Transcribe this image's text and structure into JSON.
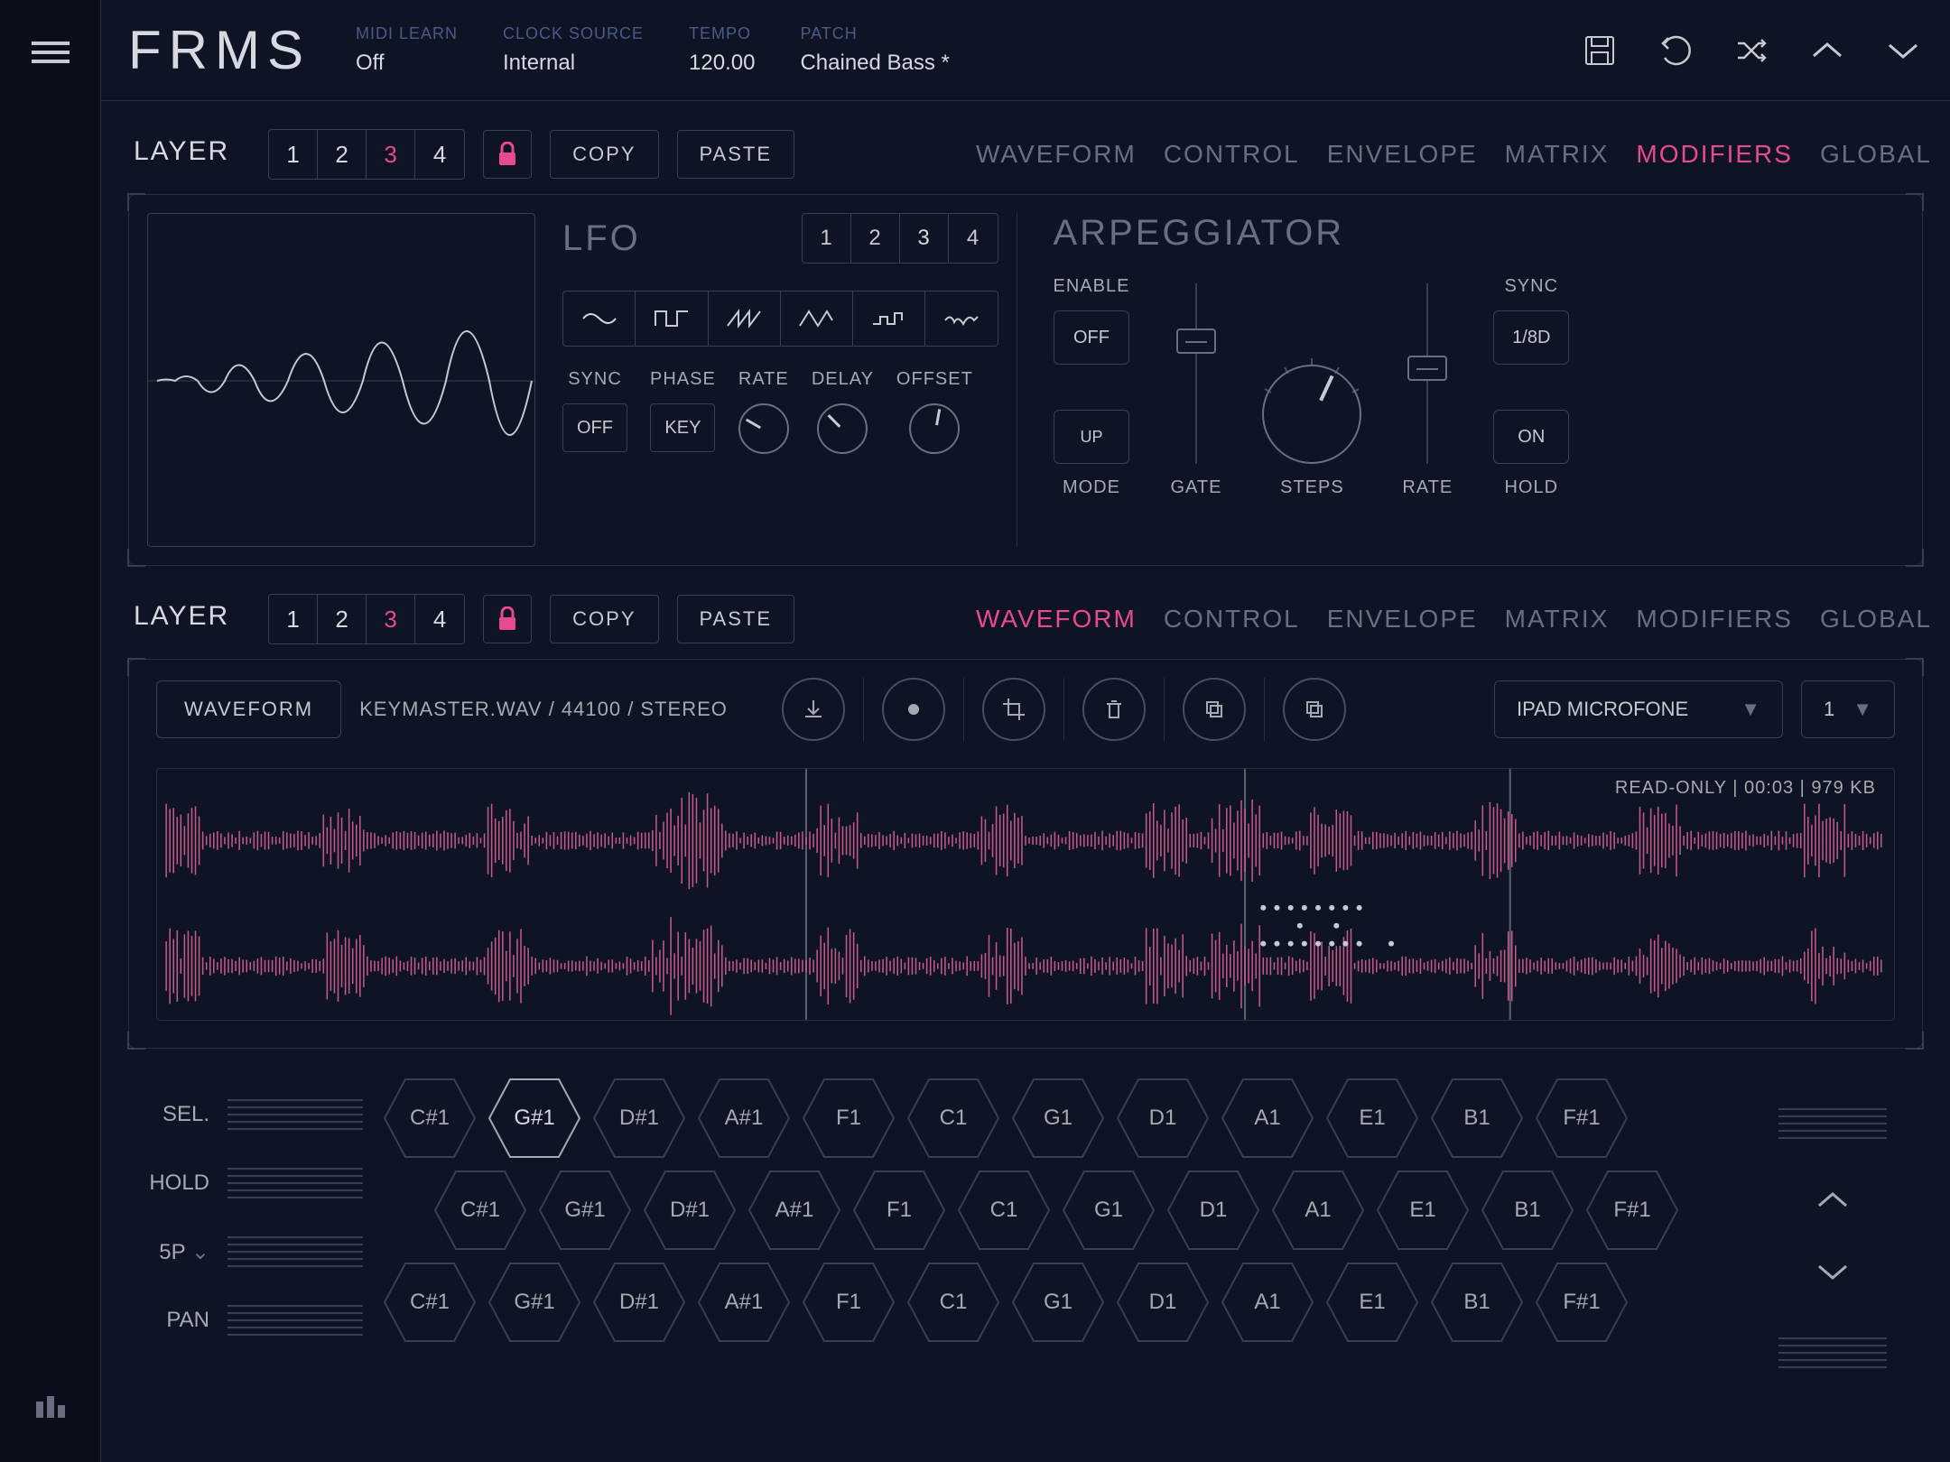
{
  "header": {
    "logo": "FRMS",
    "params": {
      "midi_learn": {
        "label": "MIDI LEARN",
        "value": "Off"
      },
      "clock_source": {
        "label": "CLOCK SOURCE",
        "value": "Internal"
      },
      "tempo": {
        "label": "TEMPO",
        "value": "120.00"
      },
      "patch": {
        "label": "PATCH",
        "value": "Chained Bass *"
      }
    }
  },
  "layer1": {
    "label": "LAYER",
    "tabs": [
      "1",
      "2",
      "3",
      "4"
    ],
    "active_tab": 2,
    "copy": "COPY",
    "paste": "PASTE",
    "nav": [
      "WAVEFORM",
      "CONTROL",
      "ENVELOPE",
      "MATRIX",
      "MODIFIERS",
      "GLOBAL"
    ],
    "nav_active": 4
  },
  "lfo": {
    "title": "LFO",
    "tabs": [
      "1",
      "2",
      "3",
      "4"
    ],
    "active_tab": 2,
    "params": {
      "sync": {
        "label": "SYNC",
        "value": "OFF"
      },
      "phase": {
        "label": "PHASE",
        "value": "KEY"
      },
      "rate": {
        "label": "RATE"
      },
      "delay": {
        "label": "DELAY"
      },
      "offset": {
        "label": "OFFSET"
      }
    }
  },
  "arp": {
    "title": "ARPEGGIATOR",
    "enable": {
      "label": "ENABLE",
      "value": "OFF"
    },
    "mode": {
      "label": "MODE",
      "value": "UP"
    },
    "gate": {
      "label": "GATE",
      "slider_pos": 0.25
    },
    "steps": {
      "label": "STEPS"
    },
    "rate": {
      "label": "RATE",
      "slider_pos": 0.4
    },
    "sync": {
      "label": "SYNC",
      "value": "1/8D"
    },
    "hold": {
      "label": "HOLD",
      "value": "ON"
    }
  },
  "layer2": {
    "label": "LAYER",
    "tabs": [
      "1",
      "2",
      "3",
      "4"
    ],
    "active_tab": 2,
    "copy": "COPY",
    "paste": "PASTE",
    "nav": [
      "WAVEFORM",
      "CONTROL",
      "ENVELOPE",
      "MATRIX",
      "MODIFIERS",
      "GLOBAL"
    ],
    "nav_active": 0
  },
  "waveform": {
    "button": "WAVEFORM",
    "info": "KEYMASTER.WAV / 44100 / STEREO",
    "input_source": "IPAD MICROFONE",
    "channel": "1",
    "status": "READ-ONLY  |  00:03  |  979 KB"
  },
  "keyboard": {
    "sel": "SEL.",
    "hold": "HOLD",
    "scale": "5P",
    "pan": "PAN",
    "row1": [
      "C#1",
      "G#1",
      "D#1",
      "A#1",
      "F1",
      "C1",
      "G1",
      "D1",
      "A1",
      "E1",
      "B1",
      "F#1"
    ],
    "row2": [
      "C#1",
      "G#1",
      "D#1",
      "A#1",
      "F1",
      "C1",
      "G1",
      "D1",
      "A1",
      "E1",
      "B1",
      "F#1"
    ],
    "row3": [
      "C#1",
      "G#1",
      "D#1",
      "A#1",
      "F1",
      "C1",
      "G1",
      "D1",
      "A1",
      "E1",
      "B1",
      "F#1"
    ],
    "active_key": 1
  },
  "colors": {
    "bg": "#0f1424",
    "accent": "#e84a8f",
    "border": "#3a3e4e",
    "text_dim": "#6a6e7e"
  }
}
